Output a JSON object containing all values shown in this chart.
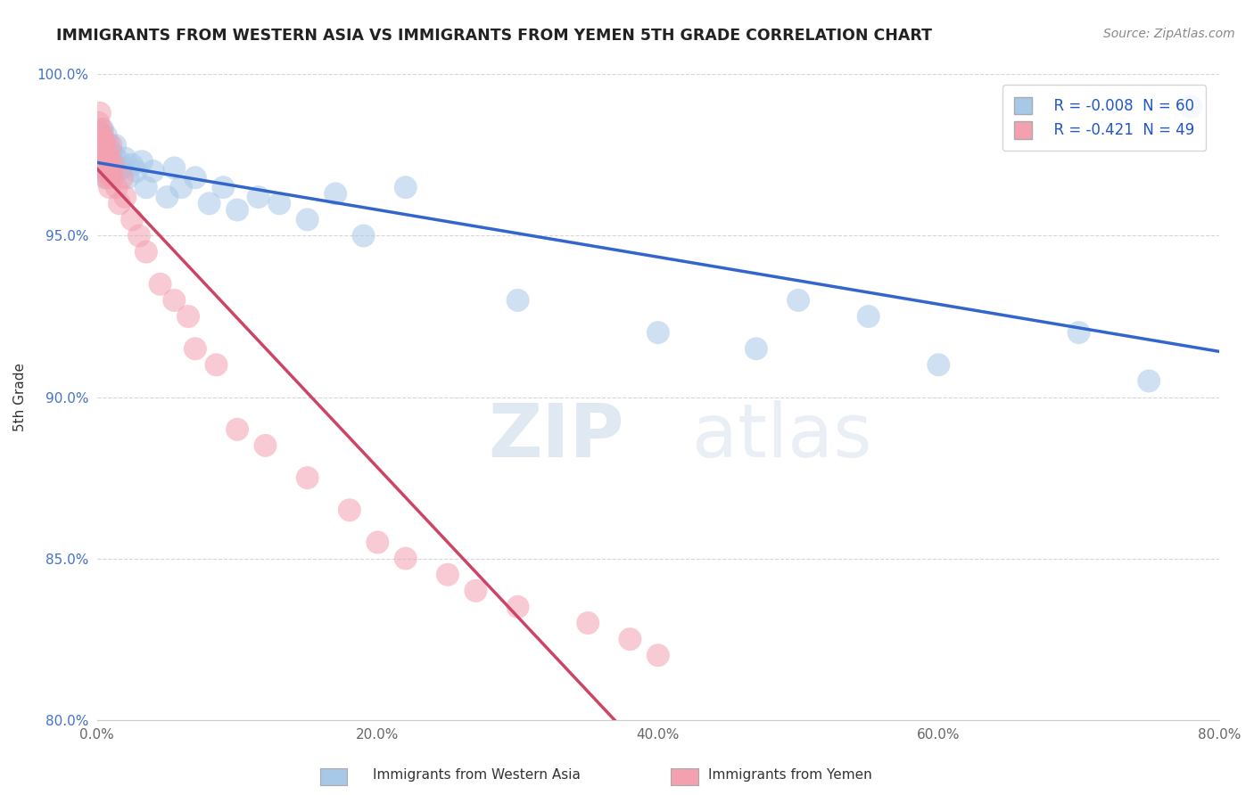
{
  "title": "IMMIGRANTS FROM WESTERN ASIA VS IMMIGRANTS FROM YEMEN 5TH GRADE CORRELATION CHART",
  "source": "Source: ZipAtlas.com",
  "ylabel": "5th Grade",
  "watermark_zip": "ZIP",
  "watermark_atlas": "atlas",
  "legend_r1": "R = -0.008",
  "legend_n1": "N = 60",
  "legend_r2": "R = -0.421",
  "legend_n2": "N = 49",
  "xlim": [
    0.0,
    80.0
  ],
  "ylim": [
    80.0,
    100.0
  ],
  "x_ticks": [
    0.0,
    20.0,
    40.0,
    60.0,
    80.0
  ],
  "y_ticks": [
    80.0,
    85.0,
    90.0,
    95.0,
    100.0
  ],
  "x_tick_labels": [
    "0.0%",
    "20.0%",
    "40.0%",
    "60.0%",
    "80.0%"
  ],
  "y_tick_labels": [
    "80.0%",
    "85.0%",
    "90.0%",
    "95.0%",
    "100.0%"
  ],
  "color_blue": "#a8c8e8",
  "color_pink": "#f4a0b0",
  "color_blue_line": "#3366cc",
  "color_pink_line": "#cc4466",
  "color_diag": "#ddaaaa",
  "blue_scatter_x": [
    0.1,
    0.15,
    0.2,
    0.25,
    0.3,
    0.35,
    0.4,
    0.45,
    0.5,
    0.55,
    0.6,
    0.65,
    0.7,
    0.75,
    0.8,
    0.85,
    0.9,
    0.95,
    1.0,
    1.1,
    1.2,
    1.3,
    1.5,
    1.6,
    1.8,
    2.0,
    2.2,
    2.5,
    2.8,
    3.2,
    3.5,
    4.0,
    5.0,
    5.5,
    6.0,
    7.0,
    8.0,
    9.0,
    10.0,
    11.5,
    13.0,
    15.0,
    17.0,
    19.0,
    22.0,
    30.0,
    40.0,
    47.0,
    50.0,
    55.0,
    60.0,
    70.0,
    75.0,
    78.0,
    0.3,
    0.5,
    0.6,
    0.8,
    1.0,
    1.2
  ],
  "blue_scatter_y": [
    97.5,
    98.2,
    97.8,
    97.3,
    98.0,
    97.6,
    98.3,
    97.1,
    97.9,
    97.4,
    97.7,
    98.1,
    97.2,
    96.9,
    97.5,
    97.8,
    97.3,
    97.0,
    97.6,
    97.2,
    97.5,
    97.8,
    97.0,
    97.3,
    97.1,
    97.4,
    96.8,
    97.2,
    97.0,
    97.3,
    96.5,
    97.0,
    96.2,
    97.1,
    96.5,
    96.8,
    96.0,
    96.5,
    95.8,
    96.2,
    96.0,
    95.5,
    96.3,
    95.0,
    96.5,
    93.0,
    92.0,
    91.5,
    93.0,
    92.5,
    91.0,
    92.0,
    90.5,
    99.0,
    97.2,
    97.0,
    96.8,
    97.5,
    97.3,
    97.1
  ],
  "pink_scatter_x": [
    0.1,
    0.15,
    0.2,
    0.25,
    0.3,
    0.35,
    0.4,
    0.5,
    0.55,
    0.6,
    0.7,
    0.8,
    0.9,
    1.0,
    1.1,
    1.2,
    1.4,
    1.6,
    1.8,
    2.0,
    2.5,
    3.0,
    3.5,
    4.5,
    5.5,
    6.5,
    7.0,
    8.5,
    10.0,
    12.0,
    15.0,
    18.0,
    20.0,
    22.0,
    25.0,
    27.0,
    30.0,
    35.0,
    38.0,
    40.0,
    0.2,
    0.3,
    0.4,
    0.5,
    0.6,
    0.7,
    0.8,
    0.9,
    1.0
  ],
  "pink_scatter_y": [
    98.5,
    98.2,
    98.8,
    98.0,
    98.3,
    97.8,
    98.1,
    97.5,
    97.9,
    97.2,
    97.6,
    97.0,
    97.4,
    97.8,
    96.8,
    97.2,
    96.5,
    96.0,
    96.8,
    96.2,
    95.5,
    95.0,
    94.5,
    93.5,
    93.0,
    92.5,
    91.5,
    91.0,
    89.0,
    88.5,
    87.5,
    86.5,
    85.5,
    85.0,
    84.5,
    84.0,
    83.5,
    83.0,
    82.5,
    82.0,
    98.0,
    97.5,
    97.8,
    97.0,
    97.3,
    96.8,
    97.1,
    96.5,
    97.0
  ]
}
